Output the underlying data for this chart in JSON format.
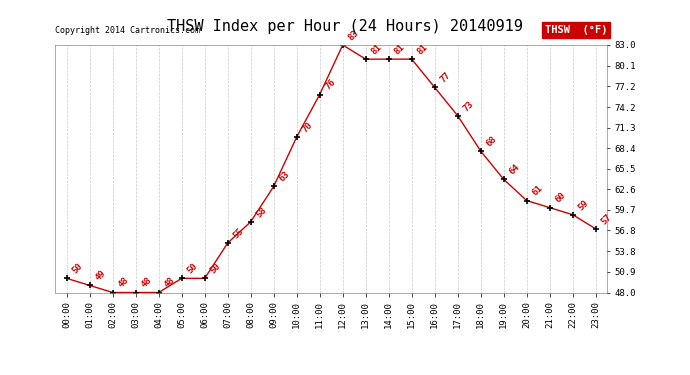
{
  "title": "THSW Index per Hour (24 Hours) 20140919",
  "copyright": "Copyright 2014 Cartronics.com",
  "legend_label": "THSW  (°F)",
  "hours": [
    "00:00",
    "01:00",
    "02:00",
    "03:00",
    "04:00",
    "05:00",
    "06:00",
    "07:00",
    "08:00",
    "09:00",
    "10:00",
    "11:00",
    "12:00",
    "13:00",
    "14:00",
    "15:00",
    "16:00",
    "17:00",
    "18:00",
    "19:00",
    "20:00",
    "21:00",
    "22:00",
    "23:00"
  ],
  "values": [
    50,
    49,
    48,
    48,
    48,
    50,
    50,
    55,
    58,
    63,
    70,
    76,
    83,
    81,
    81,
    81,
    77,
    73,
    68,
    64,
    61,
    60,
    59,
    57
  ],
  "ylim": [
    48.0,
    83.0
  ],
  "ytick_labels": [
    "48.0",
    "50.9",
    "53.8",
    "56.8",
    "59.7",
    "62.6",
    "65.5",
    "68.4",
    "71.3",
    "74.2",
    "77.2",
    "80.1",
    "83.0"
  ],
  "ytick_values": [
    48.0,
    50.9,
    53.8,
    56.8,
    59.7,
    62.6,
    65.5,
    68.4,
    71.3,
    74.2,
    77.2,
    80.1,
    83.0
  ],
  "line_color": "#cc0000",
  "marker_color": "#000000",
  "background_color": "#ffffff",
  "grid_color": "#bbbbbb",
  "title_fontsize": 11,
  "tick_fontsize": 6.5,
  "annotation_fontsize": 6.5,
  "legend_bg": "#cc0000",
  "legend_text_color": "#ffffff",
  "copyright_fontsize": 6,
  "legend_fontsize": 7.5
}
